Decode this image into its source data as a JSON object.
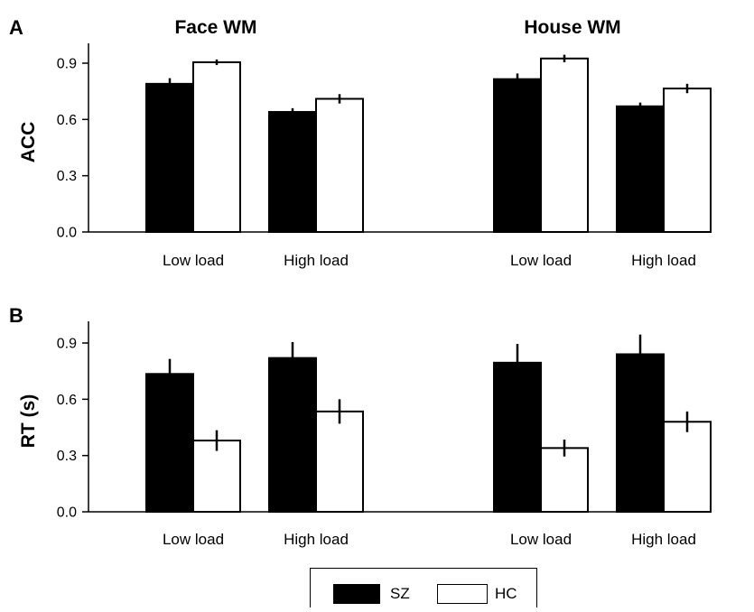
{
  "chart_data": [
    {
      "type": "bar",
      "panel_label": "A",
      "ylabel": "ACC",
      "ylim": [
        0,
        1.0
      ],
      "yticks": [
        "0.0",
        "0.3",
        "0.6",
        "0.9"
      ],
      "groups": [
        {
          "title": "Face WM",
          "categories": [
            "Low load",
            "High load"
          ],
          "series": [
            {
              "name": "SZ",
              "values": [
                0.79,
                0.64
              ],
              "errors": [
                0.03,
                0.02
              ]
            },
            {
              "name": "HC",
              "values": [
                0.905,
                0.71
              ],
              "errors": [
                0.015,
                0.025
              ]
            }
          ]
        },
        {
          "title": "House WM",
          "categories": [
            "Low load",
            "High load"
          ],
          "series": [
            {
              "name": "SZ",
              "values": [
                0.815,
                0.67
              ],
              "errors": [
                0.03,
                0.02
              ]
            },
            {
              "name": "HC",
              "values": [
                0.925,
                0.765
              ],
              "errors": [
                0.02,
                0.025
              ]
            }
          ]
        }
      ]
    },
    {
      "type": "bar",
      "panel_label": "B",
      "ylabel": "RT (s)",
      "ylim": [
        0,
        1.0
      ],
      "yticks": [
        "0.0",
        "0.3",
        "0.6",
        "0.9"
      ],
      "groups": [
        {
          "title": "",
          "categories": [
            "Low load",
            "High load"
          ],
          "series": [
            {
              "name": "SZ",
              "values": [
                0.735,
                0.82
              ],
              "errors": [
                0.08,
                0.085
              ]
            },
            {
              "name": "HC",
              "values": [
                0.38,
                0.535
              ],
              "errors": [
                0.055,
                0.065
              ]
            }
          ]
        },
        {
          "title": "",
          "categories": [
            "Low load",
            "High load"
          ],
          "series": [
            {
              "name": "SZ",
              "values": [
                0.795,
                0.84
              ],
              "errors": [
                0.1,
                0.105
              ]
            },
            {
              "name": "HC",
              "values": [
                0.34,
                0.48
              ],
              "errors": [
                0.045,
                0.055
              ]
            }
          ]
        }
      ]
    }
  ],
  "legend": {
    "position": "bottom-center",
    "items": [
      {
        "label": "SZ",
        "color": "#000000"
      },
      {
        "label": "HC",
        "color": "#ffffff"
      }
    ]
  },
  "colors": {
    "SZ": "#000000",
    "HC": "#ffffff",
    "stroke": "#000000"
  }
}
